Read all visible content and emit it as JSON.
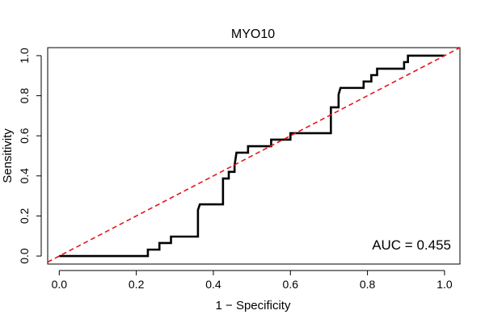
{
  "chart_data": {
    "type": "line",
    "title": "MYO10",
    "xlabel": "1 − Specificity",
    "ylabel": "Sensitivity",
    "xlim": [
      -0.03,
      1.04
    ],
    "ylim": [
      -0.04,
      1.04
    ],
    "x_ticks": [
      0.0,
      0.2,
      0.4,
      0.6,
      0.8,
      1.0
    ],
    "x_tick_labels": [
      "0.0",
      "0.2",
      "0.4",
      "0.6",
      "0.8",
      "1.0"
    ],
    "y_ticks": [
      0.0,
      0.2,
      0.4,
      0.6,
      0.8,
      1.0
    ],
    "y_tick_labels": [
      "0.0",
      "0.2",
      "0.4",
      "0.6",
      "0.8",
      "1.0"
    ],
    "annotation": "AUC = 0.455",
    "series": [
      {
        "name": "ROC curve",
        "color": "#000000",
        "style": "solid",
        "points": [
          [
            0.0,
            0.0
          ],
          [
            0.23,
            0.0
          ],
          [
            0.23,
            0.032
          ],
          [
            0.26,
            0.032
          ],
          [
            0.26,
            0.065
          ],
          [
            0.29,
            0.065
          ],
          [
            0.29,
            0.097
          ],
          [
            0.36,
            0.097
          ],
          [
            0.36,
            0.23
          ],
          [
            0.365,
            0.258
          ],
          [
            0.425,
            0.258
          ],
          [
            0.425,
            0.387
          ],
          [
            0.44,
            0.387
          ],
          [
            0.44,
            0.42
          ],
          [
            0.455,
            0.42
          ],
          [
            0.455,
            0.452
          ],
          [
            0.46,
            0.516
          ],
          [
            0.49,
            0.516
          ],
          [
            0.49,
            0.548
          ],
          [
            0.55,
            0.548
          ],
          [
            0.55,
            0.581
          ],
          [
            0.6,
            0.581
          ],
          [
            0.6,
            0.613
          ],
          [
            0.705,
            0.613
          ],
          [
            0.705,
            0.742
          ],
          [
            0.725,
            0.742
          ],
          [
            0.725,
            0.806
          ],
          [
            0.73,
            0.839
          ],
          [
            0.79,
            0.839
          ],
          [
            0.79,
            0.871
          ],
          [
            0.81,
            0.871
          ],
          [
            0.81,
            0.903
          ],
          [
            0.825,
            0.903
          ],
          [
            0.825,
            0.935
          ],
          [
            0.895,
            0.935
          ],
          [
            0.895,
            0.968
          ],
          [
            0.905,
            0.968
          ],
          [
            0.905,
            1.0
          ],
          [
            1.0,
            1.0
          ]
        ]
      },
      {
        "name": "reference diagonal",
        "color": "#e8141b",
        "style": "dashed",
        "points": [
          [
            -0.03,
            -0.03
          ],
          [
            1.04,
            1.04
          ]
        ]
      }
    ]
  }
}
